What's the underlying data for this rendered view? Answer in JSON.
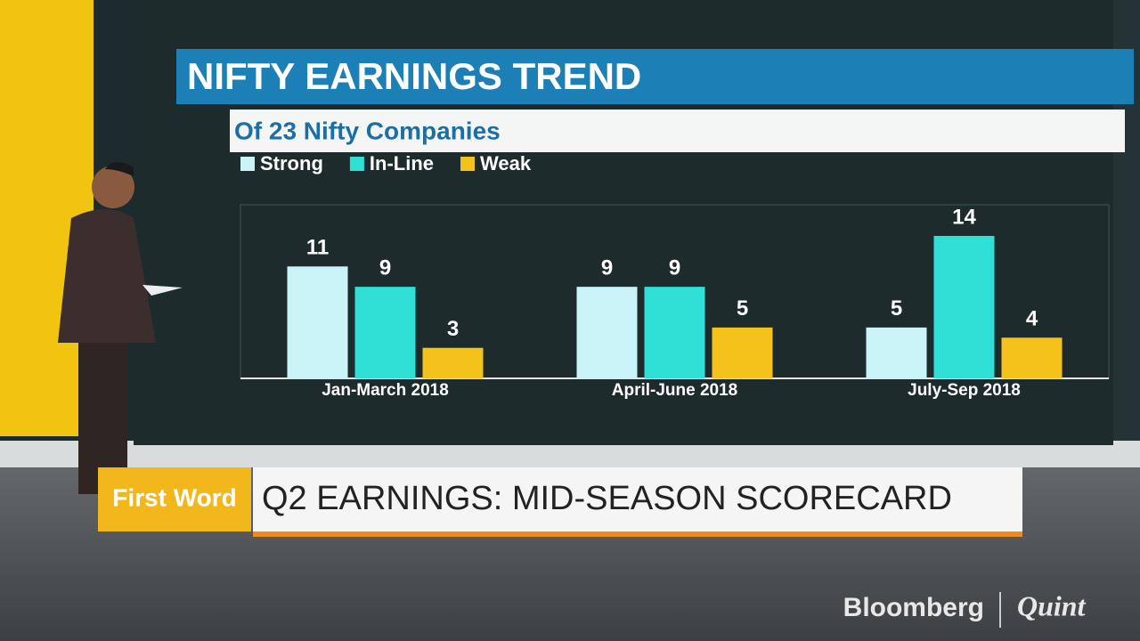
{
  "chart_data": {
    "type": "bar",
    "title": "NIFTY EARNINGS TREND",
    "subtitle": "Of 23 Nifty Companies",
    "categories": [
      "Jan-March 2018",
      "April-June 2018",
      "July-Sep 2018"
    ],
    "series": [
      {
        "name": "Strong",
        "color": "#c9f3f6",
        "values": [
          11,
          9,
          5
        ]
      },
      {
        "name": "In-Line",
        "color": "#30e0d6",
        "values": [
          9,
          9,
          14
        ]
      },
      {
        "name": "Weak",
        "color": "#f4c21a",
        "values": [
          3,
          5,
          4
        ]
      }
    ],
    "legend": "top-left"
  },
  "banner": {
    "tag": "First Word",
    "headline": "Q2 EARNINGS: MID-SEASON SCORECARD"
  },
  "logo": {
    "left": "Bloomberg",
    "right": "Quint"
  }
}
